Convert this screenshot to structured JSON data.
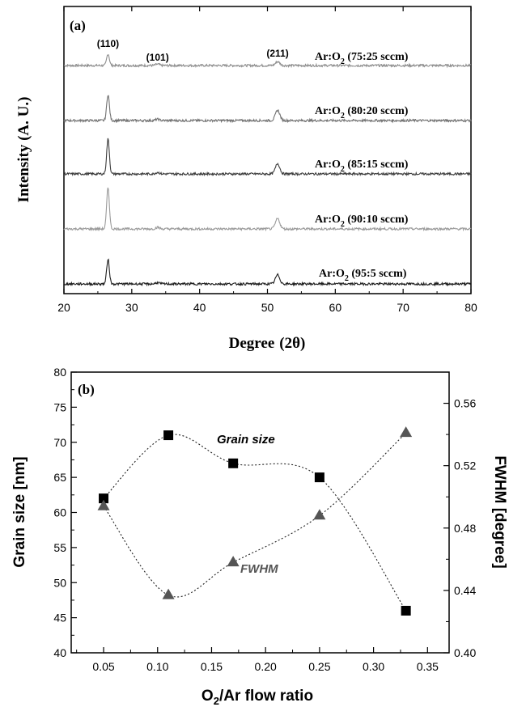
{
  "chart_data": [
    {
      "type": "line",
      "panel_label": "(a)",
      "xlabel": "Degree",
      "xlabel_symbol": "(2θ)",
      "ylabel": "Intensity (A. U.)",
      "xlim": [
        20,
        80
      ],
      "x_ticks": [
        20,
        30,
        40,
        50,
        60,
        70,
        80
      ],
      "peaks": [
        {
          "label": "(110)",
          "x": 26.5
        },
        {
          "label": "(101)",
          "x": 33.8
        },
        {
          "label": "(211)",
          "x": 51.5
        }
      ],
      "series": [
        {
          "name": "Ar:O₂ (75:25 sccm)",
          "label_main": "Ar:O",
          "label_sub": "2",
          "label_tail": " (75:25 sccm)",
          "color": "#8c8c8c",
          "peak_heights": [
            0.45,
            0.05,
            0.15
          ]
        },
        {
          "name": "Ar:O₂ (80:20 sccm)",
          "label_main": "Ar:O",
          "label_sub": "2",
          "label_tail": " (80:20 sccm)",
          "color": "#707070",
          "peak_heights": [
            1.0,
            0.05,
            0.4
          ]
        },
        {
          "name": "Ar:O₂ (85:15 sccm)",
          "label_main": "Ar:O",
          "label_sub": "2",
          "label_tail": " (85:15 sccm)",
          "color": "#3c3c3c",
          "peak_heights": [
            1.35,
            0.06,
            0.4
          ]
        },
        {
          "name": "Ar:O₂ (90:10 sccm)",
          "label_main": "Ar:O",
          "label_sub": "2",
          "label_tail": " (90:10 sccm)",
          "color": "#9a9a9a",
          "peak_heights": [
            1.6,
            0.06,
            0.4
          ]
        },
        {
          "name": "Ar:O₂ (95:5 sccm)",
          "label_main": "Ar:O",
          "label_sub": "2",
          "label_tail": " (95:5 sccm)",
          "color": "#1e1e1e",
          "peak_heights": [
            0.95,
            0.05,
            0.35
          ]
        }
      ]
    },
    {
      "type": "scatter",
      "panel_label": "(b)",
      "xlabel_main": "O",
      "xlabel_sub": "2",
      "xlabel_tail": "/Ar flow ratio",
      "ylabel": "Grain size [nm]",
      "y2label": "FWHM [degree]",
      "xlim": [
        0.02,
        0.37
      ],
      "ylim": [
        40,
        80
      ],
      "y2lim": [
        0.4,
        0.58
      ],
      "x_ticks": [
        0.05,
        0.1,
        0.15,
        0.2,
        0.25,
        0.3,
        0.35
      ],
      "x_tick_labels": [
        "0.05",
        "0.10",
        "0.15",
        "0.20",
        "0.25",
        "0.30",
        "0.35"
      ],
      "y_ticks": [
        40,
        45,
        50,
        55,
        60,
        65,
        70,
        75,
        80
      ],
      "y2_ticks": [
        0.4,
        0.44,
        0.48,
        0.52,
        0.56
      ],
      "y2_tick_labels": [
        "0.40",
        "0.44",
        "0.48",
        "0.52",
        "0.56"
      ],
      "series": [
        {
          "name": "Grain size",
          "axis": "left",
          "marker": "square",
          "color": "#000000",
          "x": [
            0.05,
            0.11,
            0.17,
            0.25,
            0.33
          ],
          "y": [
            62,
            71,
            67,
            65,
            46
          ]
        },
        {
          "name": "FWHM",
          "axis": "right",
          "marker": "triangle",
          "color": "#555555",
          "x": [
            0.05,
            0.11,
            0.17,
            0.25,
            0.33
          ],
          "y": [
            0.494,
            0.437,
            0.458,
            0.488,
            0.541
          ]
        }
      ]
    }
  ]
}
